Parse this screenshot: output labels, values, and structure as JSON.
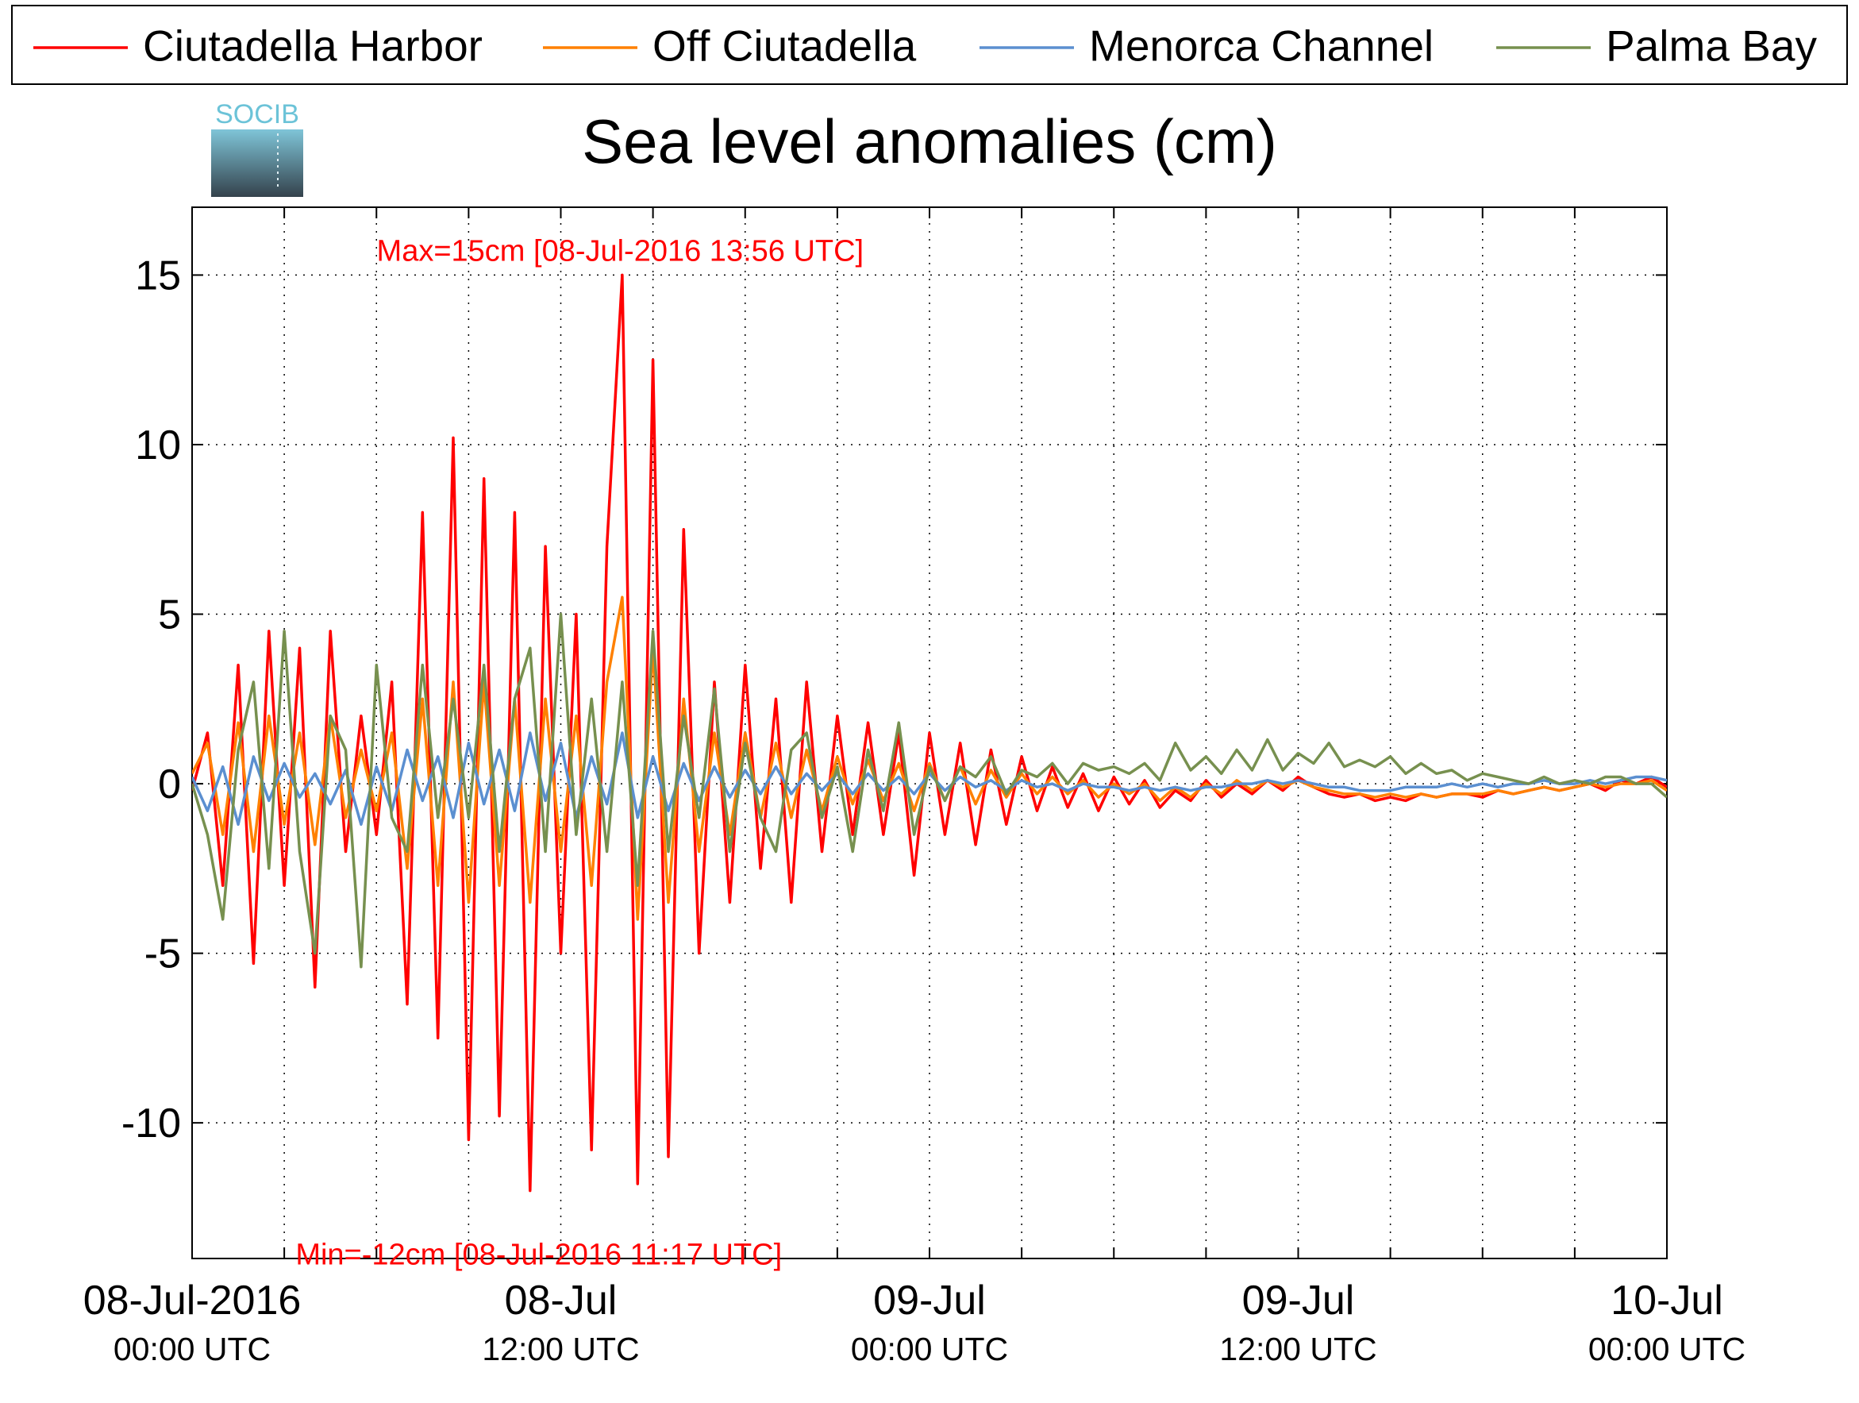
{
  "chart_data": {
    "type": "line",
    "title": "Sea level anomalies (cm)",
    "logo_text": "SOCIB",
    "annotations": [
      {
        "text": "Max=15cm [08-Jul-2016 13:56 UTC]",
        "x": "2016-07-08T13:56",
        "y": 15,
        "color": "#ff0000",
        "position": "above"
      },
      {
        "text": "Min=-12cm [08-Jul-2016 11:17 UTC]",
        "x": "2016-07-08T11:17",
        "y": -12,
        "color": "#ff0000",
        "position": "below"
      }
    ],
    "x": [
      "2016-07-08T00:00",
      "2016-07-08T00:30",
      "2016-07-08T01:00",
      "2016-07-08T01:30",
      "2016-07-08T02:00",
      "2016-07-08T02:30",
      "2016-07-08T03:00",
      "2016-07-08T03:30",
      "2016-07-08T04:00",
      "2016-07-08T04:30",
      "2016-07-08T05:00",
      "2016-07-08T05:30",
      "2016-07-08T06:00",
      "2016-07-08T06:30",
      "2016-07-08T07:00",
      "2016-07-08T07:30",
      "2016-07-08T08:00",
      "2016-07-08T08:30",
      "2016-07-08T09:00",
      "2016-07-08T09:30",
      "2016-07-08T10:00",
      "2016-07-08T10:30",
      "2016-07-08T11:00",
      "2016-07-08T11:30",
      "2016-07-08T12:00",
      "2016-07-08T12:30",
      "2016-07-08T13:00",
      "2016-07-08T13:30",
      "2016-07-08T14:00",
      "2016-07-08T14:30",
      "2016-07-08T15:00",
      "2016-07-08T15:30",
      "2016-07-08T16:00",
      "2016-07-08T16:30",
      "2016-07-08T17:00",
      "2016-07-08T17:30",
      "2016-07-08T18:00",
      "2016-07-08T18:30",
      "2016-07-08T19:00",
      "2016-07-08T19:30",
      "2016-07-08T20:00",
      "2016-07-08T20:30",
      "2016-07-08T21:00",
      "2016-07-08T21:30",
      "2016-07-08T22:00",
      "2016-07-08T22:30",
      "2016-07-08T23:00",
      "2016-07-08T23:30",
      "2016-07-09T00:00",
      "2016-07-09T00:30",
      "2016-07-09T01:00",
      "2016-07-09T01:30",
      "2016-07-09T02:00",
      "2016-07-09T02:30",
      "2016-07-09T03:00",
      "2016-07-09T03:30",
      "2016-07-09T04:00",
      "2016-07-09T04:30",
      "2016-07-09T05:00",
      "2016-07-09T05:30",
      "2016-07-09T06:00",
      "2016-07-09T06:30",
      "2016-07-09T07:00",
      "2016-07-09T07:30",
      "2016-07-09T08:00",
      "2016-07-09T08:30",
      "2016-07-09T09:00",
      "2016-07-09T09:30",
      "2016-07-09T10:00",
      "2016-07-09T10:30",
      "2016-07-09T11:00",
      "2016-07-09T11:30",
      "2016-07-09T12:00",
      "2016-07-09T12:30",
      "2016-07-09T13:00",
      "2016-07-09T13:30",
      "2016-07-09T14:00",
      "2016-07-09T14:30",
      "2016-07-09T15:00",
      "2016-07-09T15:30",
      "2016-07-09T16:00",
      "2016-07-09T16:30",
      "2016-07-09T17:00",
      "2016-07-09T17:30",
      "2016-07-09T18:00",
      "2016-07-09T18:30",
      "2016-07-09T19:00",
      "2016-07-09T19:30",
      "2016-07-09T20:00",
      "2016-07-09T20:30",
      "2016-07-09T21:00",
      "2016-07-09T21:30",
      "2016-07-09T22:00",
      "2016-07-09T22:30",
      "2016-07-09T23:00",
      "2016-07-09T23:30",
      "2016-07-10T00:00"
    ],
    "series": [
      {
        "name": "Ciutadella Harbor",
        "color": "#ff0000",
        "values": [
          -0.2,
          1.5,
          -3,
          3.5,
          -5.3,
          4.5,
          -3,
          4,
          -6,
          4.5,
          -2,
          2,
          -1.5,
          3,
          -6.5,
          8,
          -7.5,
          10.2,
          -10.5,
          9,
          -9.8,
          8,
          -12,
          7,
          -5,
          5,
          -10.8,
          7,
          15,
          -11.8,
          12.5,
          -11,
          7.5,
          -5,
          3,
          -3.5,
          3.5,
          -2.5,
          2.5,
          -3.5,
          3,
          -2,
          2,
          -1.5,
          1.8,
          -1.5,
          1.5,
          -2.7,
          1.5,
          -1.5,
          1.2,
          -1.8,
          1,
          -1.2,
          0.8,
          -0.8,
          0.5,
          -0.7,
          0.3,
          -0.8,
          0.2,
          -0.6,
          0.1,
          -0.7,
          -0.2,
          -0.5,
          0.1,
          -0.4,
          0,
          -0.3,
          0.1,
          -0.2,
          0.2,
          -0.1,
          -0.3,
          -0.4,
          -0.3,
          -0.5,
          -0.4,
          -0.5,
          -0.3,
          -0.4,
          -0.3,
          -0.3,
          -0.4,
          -0.2,
          -0.3,
          -0.2,
          -0.1,
          -0.2,
          -0.1,
          0,
          -0.2,
          0.1,
          0,
          0.2,
          -0.1
        ]
      },
      {
        "name": "Off Ciutadella",
        "color": "#ff8000",
        "values": [
          0.3,
          1.2,
          -1.5,
          1.8,
          -2,
          2,
          -1.2,
          1.5,
          -1.8,
          2,
          -1,
          1,
          -0.8,
          1.5,
          -2.5,
          2.5,
          -3,
          3,
          -3.5,
          3,
          -3,
          2.5,
          -3.5,
          2.5,
          -2,
          2,
          -3,
          3,
          5.5,
          -4,
          4,
          -3.5,
          2.5,
          -2,
          1.5,
          -1.5,
          1.5,
          -1,
          1.2,
          -1,
          1,
          -0.8,
          0.8,
          -0.6,
          0.7,
          -0.5,
          0.6,
          -0.8,
          0.6,
          -0.5,
          0.5,
          -0.6,
          0.4,
          -0.4,
          0.3,
          -0.3,
          0.2,
          -0.3,
          0.1,
          -0.4,
          0,
          -0.3,
          0,
          -0.5,
          -0.1,
          -0.4,
          0,
          -0.3,
          0.1,
          -0.2,
          0.1,
          -0.1,
          0.1,
          -0.1,
          -0.2,
          -0.3,
          -0.3,
          -0.4,
          -0.3,
          -0.4,
          -0.3,
          -0.4,
          -0.3,
          -0.3,
          -0.3,
          -0.2,
          -0.3,
          -0.2,
          -0.1,
          -0.2,
          -0.1,
          0,
          -0.1,
          0,
          0,
          0.1,
          -0.2
        ]
      },
      {
        "name": "Menorca Channel",
        "color": "#5b8fd0",
        "values": [
          0.2,
          -0.8,
          0.5,
          -1.2,
          0.8,
          -0.5,
          0.6,
          -0.4,
          0.3,
          -0.6,
          0.4,
          -1.2,
          0.5,
          -0.8,
          1,
          -0.5,
          0.8,
          -1,
          1.2,
          -0.6,
          1,
          -0.8,
          1.5,
          -0.5,
          1.2,
          -1,
          0.8,
          -0.6,
          1.5,
          -1,
          0.8,
          -0.8,
          0.6,
          -0.5,
          0.5,
          -0.4,
          0.4,
          -0.3,
          0.5,
          -0.3,
          0.3,
          -0.2,
          0.3,
          -0.3,
          0.3,
          -0.2,
          0.2,
          -0.3,
          0.3,
          -0.2,
          0.2,
          -0.1,
          0.1,
          -0.2,
          0.1,
          -0.1,
          0,
          -0.2,
          0,
          -0.1,
          -0.1,
          -0.2,
          -0.1,
          -0.2,
          -0.1,
          -0.2,
          -0.1,
          -0.1,
          0,
          0,
          0.1,
          0,
          0.1,
          0,
          -0.1,
          -0.1,
          -0.2,
          -0.2,
          -0.2,
          -0.1,
          -0.1,
          -0.1,
          0,
          -0.1,
          0,
          -0.1,
          0,
          0,
          0.1,
          0,
          0,
          0.1,
          0,
          0.1,
          0.2,
          0.2,
          0.1
        ]
      },
      {
        "name": "Palma Bay",
        "color": "#77904f",
        "values": [
          0,
          -1.5,
          -4,
          1,
          3,
          -2.5,
          4.5,
          -2,
          -5,
          2,
          1,
          -5.4,
          3.5,
          -1,
          -2,
          3.5,
          -1,
          2.5,
          -1,
          3.5,
          -2,
          2.5,
          4,
          -2,
          5,
          -1.5,
          2.5,
          -2,
          3,
          -3,
          4.5,
          -2,
          2,
          -1,
          2.8,
          -2,
          1.2,
          -1,
          -2,
          1,
          1.5,
          -1,
          0.5,
          -2,
          1,
          -0.8,
          1.8,
          -1.5,
          0.5,
          -0.5,
          0.5,
          0.2,
          0.8,
          -0.3,
          0.4,
          0.2,
          0.6,
          0,
          0.6,
          0.4,
          0.5,
          0.3,
          0.6,
          0.1,
          1.2,
          0.4,
          0.8,
          0.3,
          1,
          0.4,
          1.3,
          0.4,
          0.9,
          0.6,
          1.2,
          0.5,
          0.7,
          0.5,
          0.8,
          0.3,
          0.6,
          0.3,
          0.4,
          0.1,
          0.3,
          0.2,
          0.1,
          0,
          0.2,
          0,
          0.1,
          0,
          0.2,
          0.2,
          0,
          0,
          -0.4
        ]
      }
    ],
    "xlim": [
      "2016-07-08T00:00",
      "2016-07-10T00:00"
    ],
    "xticks": [
      {
        "value": "2016-07-08T00:00",
        "label": [
          "08-Jul-2016",
          "00:00 UTC"
        ]
      },
      {
        "value": "2016-07-08T12:00",
        "label": [
          "08-Jul",
          "12:00 UTC"
        ]
      },
      {
        "value": "2016-07-09T00:00",
        "label": [
          "09-Jul",
          "00:00 UTC"
        ]
      },
      {
        "value": "2016-07-09T12:00",
        "label": [
          "09-Jul",
          "12:00 UTC"
        ]
      },
      {
        "value": "2016-07-10T00:00",
        "label": [
          "10-Jul",
          "00:00 UTC"
        ]
      }
    ],
    "xminorticks": [
      "2016-07-08T03:00",
      "2016-07-08T06:00",
      "2016-07-08T09:00",
      "2016-07-08T15:00",
      "2016-07-08T18:00",
      "2016-07-08T21:00",
      "2016-07-09T03:00",
      "2016-07-09T06:00",
      "2016-07-09T09:00",
      "2016-07-09T15:00",
      "2016-07-09T18:00",
      "2016-07-09T21:00"
    ],
    "ylim": [
      -14,
      17
    ],
    "yticks": [
      -10,
      -5,
      0,
      5,
      10,
      15
    ],
    "grid": true,
    "legend": "top"
  }
}
